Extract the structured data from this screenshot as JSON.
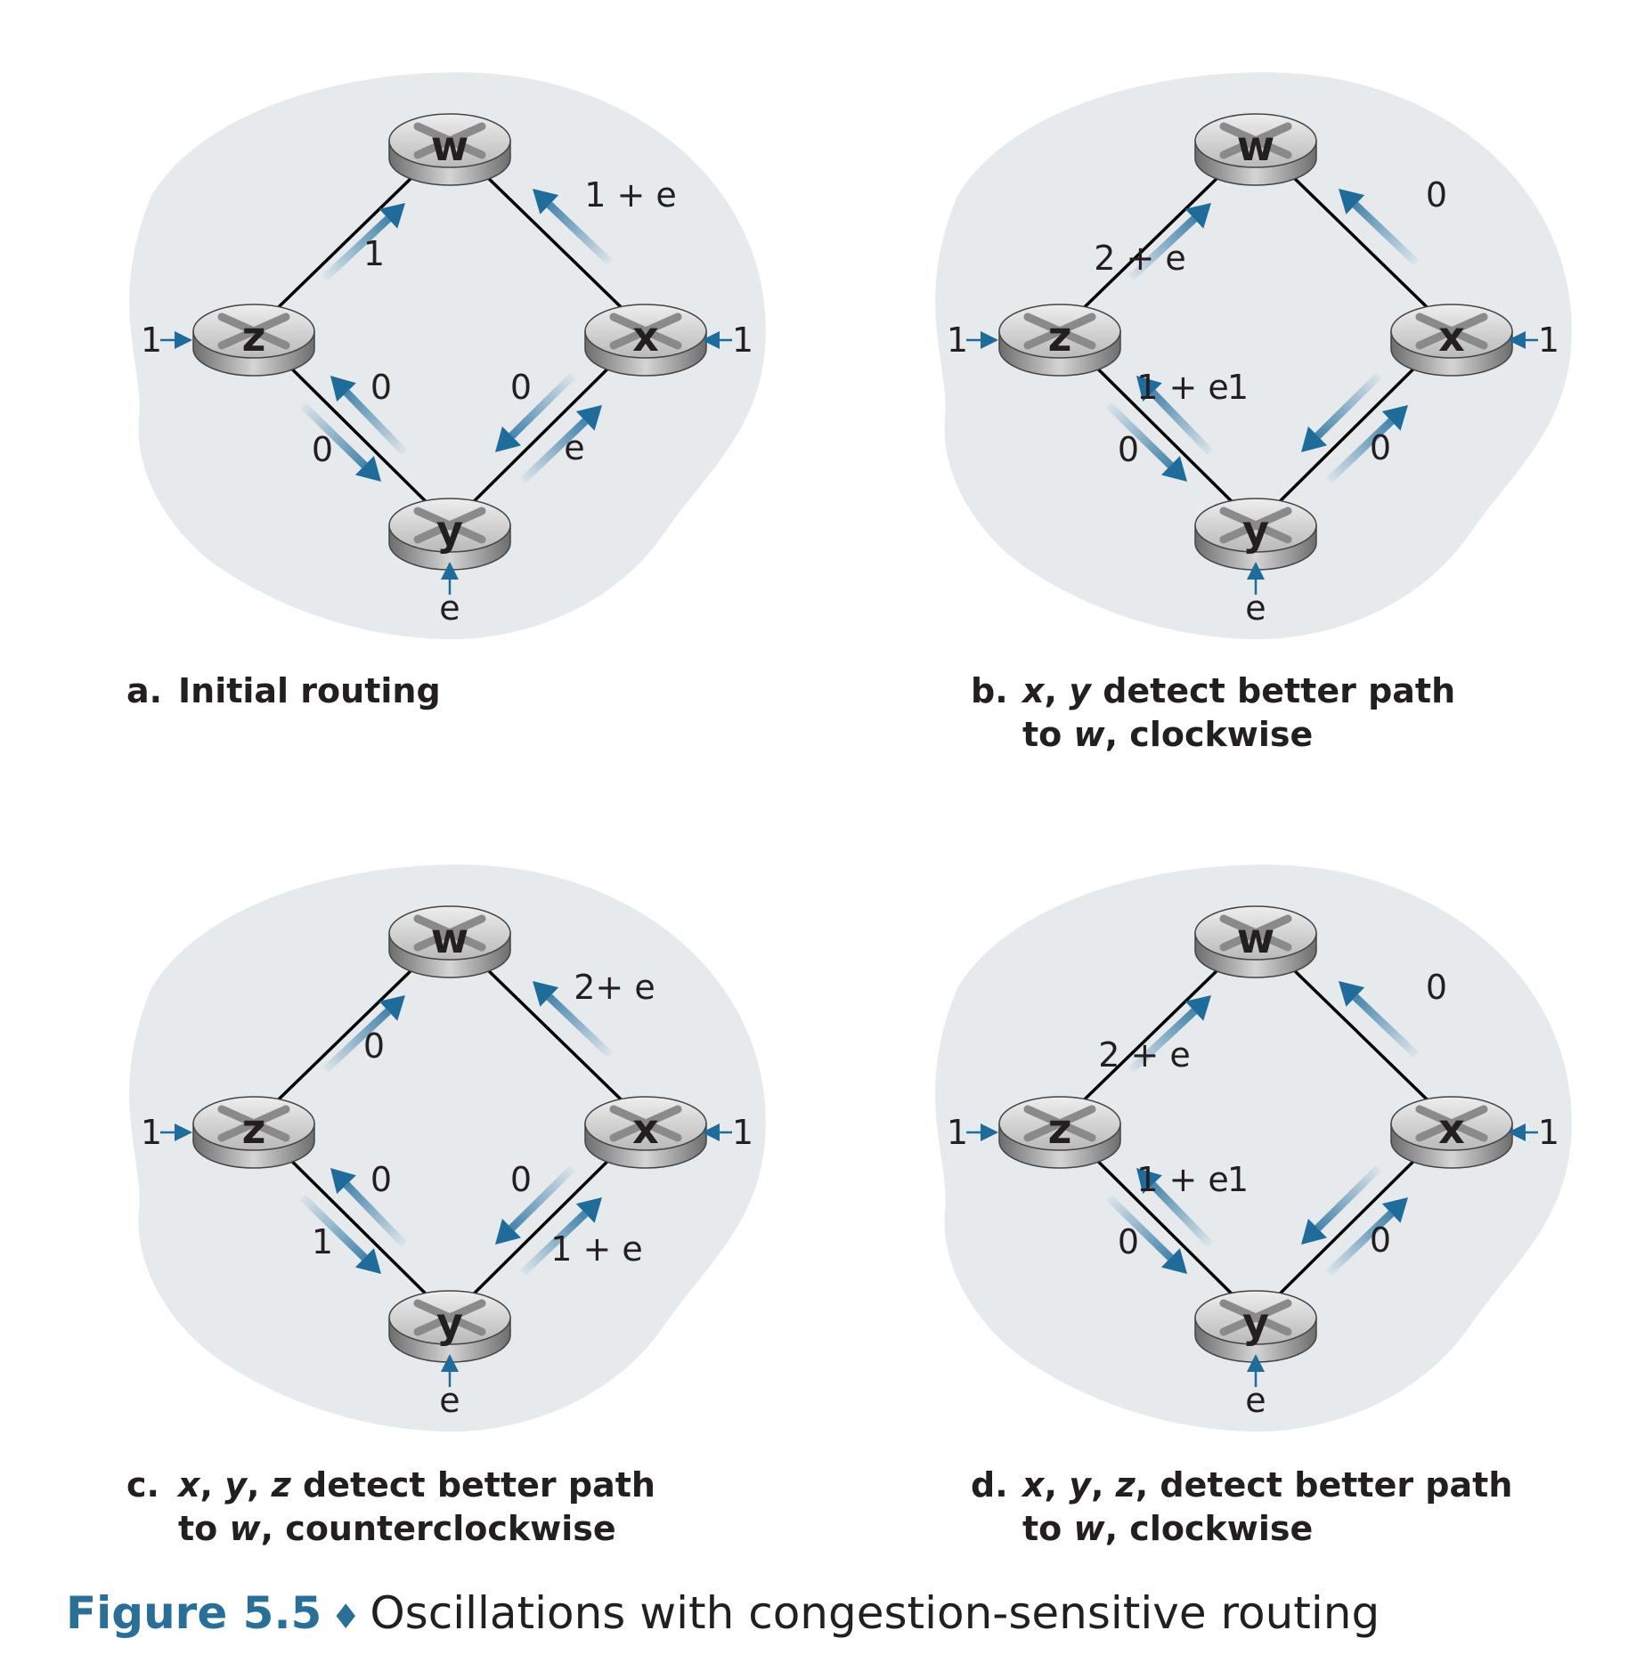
{
  "panels": [
    {
      "id": "a",
      "nodes": {
        "w": "w",
        "x": "x",
        "y": "y",
        "z": "z"
      },
      "ext": {
        "z": "1",
        "x": "1",
        "y": "e"
      },
      "links": {
        "zw": {
          "label": "1",
          "dir": "up"
        },
        "wx": {
          "label": "1 + e",
          "dir": "up"
        },
        "zy_out": {
          "label": "0",
          "dir": "up"
        },
        "zy_in": {
          "label": "0",
          "dir": "down"
        },
        "xy_out": {
          "label": "0",
          "dir": "down"
        },
        "xy_in": {
          "label": "e",
          "dir": "up"
        }
      },
      "caption": {
        "letter": "a.",
        "line1": "Initial routing",
        "line2": ""
      }
    },
    {
      "id": "b",
      "nodes": {
        "w": "w",
        "x": "x",
        "y": "y",
        "z": "z"
      },
      "ext": {
        "z": "1",
        "x": "1",
        "y": "e"
      },
      "links": {
        "zw": {
          "label": "2 + e",
          "dir": "up"
        },
        "wx": {
          "label": "0",
          "dir": "up"
        },
        "zy_out": {
          "label": "1 + e",
          "dir": "up"
        },
        "zy_in": {
          "label": "0",
          "dir": "down"
        },
        "xy_out": {
          "label": "1",
          "dir": "down"
        },
        "xy_in": {
          "label": "0",
          "dir": "up"
        }
      },
      "caption": {
        "letter": "b.",
        "v1": "x",
        "s1": ", ",
        "v2": "y",
        "t1": " detect better path",
        "t2a": "to ",
        "v3": "w",
        "t2b": ", clockwise"
      }
    },
    {
      "id": "c",
      "nodes": {
        "w": "w",
        "x": "x",
        "y": "y",
        "z": "z"
      },
      "ext": {
        "z": "1",
        "x": "1",
        "y": "e"
      },
      "links": {
        "zw": {
          "label": "0",
          "dir": "up"
        },
        "wx": {
          "label": "2+ e",
          "dir": "up"
        },
        "zy_out": {
          "label": "0",
          "dir": "up"
        },
        "zy_in": {
          "label": "1",
          "dir": "down"
        },
        "xy_out": {
          "label": "0",
          "dir": "down"
        },
        "xy_in": {
          "label": "1 + e",
          "dir": "up"
        }
      },
      "caption": {
        "letter": "c.",
        "v1": "x",
        "s1": ", ",
        "v2": "y",
        "s2": ", ",
        "v4": "z",
        "t1": " detect better path",
        "t2a": "to ",
        "v3": "w",
        "t2b": ", counterclockwise"
      }
    },
    {
      "id": "d",
      "nodes": {
        "w": "w",
        "x": "x",
        "y": "y",
        "z": "z"
      },
      "ext": {
        "z": "1",
        "x": "1",
        "y": "e"
      },
      "links": {
        "zw": {
          "label": "2 + e",
          "dir": "up"
        },
        "wx": {
          "label": "0",
          "dir": "up"
        },
        "zy_out": {
          "label": "1 + e",
          "dir": "up"
        },
        "zy_in": {
          "label": "0",
          "dir": "down"
        },
        "xy_out": {
          "label": "1",
          "dir": "down"
        },
        "xy_in": {
          "label": "0",
          "dir": "up"
        }
      },
      "caption": {
        "letter": "d.",
        "v1": "x",
        "s1": ", ",
        "v2": "y",
        "s2": ", ",
        "v4": "z",
        "s3": ",",
        "t1": " detect better path",
        "t2a": "to ",
        "v3": "w",
        "t2b": ", clockwise"
      }
    }
  ],
  "figure": {
    "number": "Figure 5.5",
    "bullet": "♦",
    "title": "Oscillations with congestion-sensitive routing"
  },
  "colors": {
    "cloud": "#e6eaed",
    "arrow": "#1f6b9a",
    "link": "#000000"
  }
}
